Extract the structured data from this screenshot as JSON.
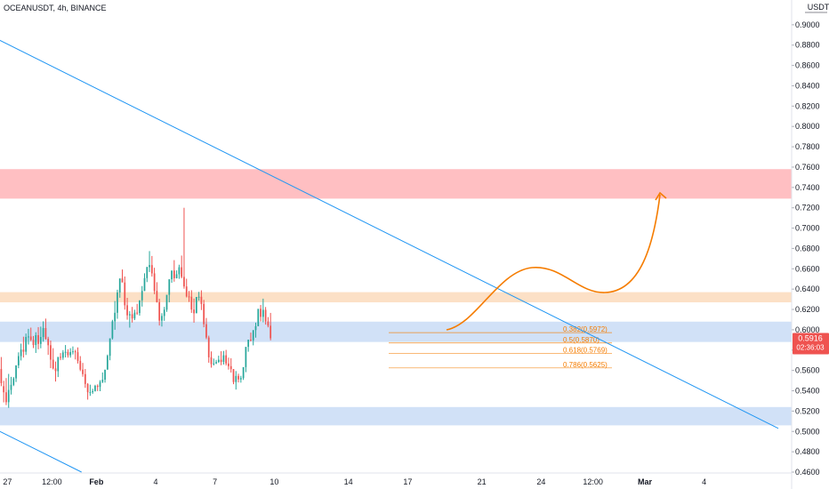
{
  "header": {
    "title": "OCEANUSDT, 4h, BINANCE",
    "currency": "USDT"
  },
  "colors": {
    "bullish": "#26a69a",
    "bearish": "#ef5350",
    "trendline": "#2196f3",
    "fib": "#f57c00",
    "zone_red": "#ffbfc2",
    "zone_orange": "#fce0c6",
    "zone_blue": "#d1e1f7",
    "price_badge": "#ef5350",
    "projection": "#f57c00"
  },
  "chart_data": {
    "type": "candlestick",
    "symbol": "OCEANUSDT",
    "interval": "4h",
    "exchange": "BINANCE",
    "ylim": [
      0.46,
      0.92
    ],
    "y_ticks": [
      "0.9000",
      "0.8800",
      "0.8600",
      "0.8400",
      "0.8200",
      "0.8000",
      "0.7800",
      "0.7600",
      "0.7400",
      "0.7200",
      "0.7000",
      "0.6800",
      "0.6600",
      "0.6400",
      "0.6200",
      "0.6000",
      "0.5800",
      "0.5600",
      "0.5400",
      "0.5200",
      "0.5000",
      "0.4800",
      "0.4600"
    ],
    "x_ticks": [
      {
        "label": "27",
        "x": 0.5
      },
      {
        "label": "12:00",
        "x": 3.5
      },
      {
        "label": "Feb",
        "x": 6.5
      },
      {
        "label": "4",
        "x": 10.5
      },
      {
        "label": "7",
        "x": 14.5
      },
      {
        "label": "10",
        "x": 18.5
      },
      {
        "label": "14",
        "x": 23.5
      },
      {
        "label": "17",
        "x": 27.5
      },
      {
        "label": "21",
        "x": 32.5
      },
      {
        "label": "24",
        "x": 36.5
      },
      {
        "label": "12:00",
        "x": 40
      },
      {
        "label": "Mar",
        "x": 43.5
      },
      {
        "label": "4",
        "x": 47.5
      }
    ],
    "x_range": [
      0,
      53.4
    ],
    "candles": [
      [
        0.5846,
        0.6012,
        0.5779,
        0.5767
      ],
      [
        0.5767,
        0.5932,
        0.5617,
        0.5614
      ],
      [
        0.5614,
        0.5732,
        0.5475,
        0.5445
      ],
      [
        0.5445,
        0.5498,
        0.5385,
        0.5286
      ],
      [
        0.5385,
        0.5525,
        0.5288,
        0.5259
      ],
      [
        0.5288,
        0.5566,
        0.5408,
        0.5232
      ],
      [
        0.5408,
        0.5537,
        0.5458,
        0.5363
      ],
      [
        0.5458,
        0.5535,
        0.5522,
        0.5446
      ],
      [
        0.5522,
        0.565,
        0.565,
        0.5486
      ],
      [
        0.565,
        0.5778,
        0.5741,
        0.5622
      ],
      [
        0.5741,
        0.5864,
        0.5805,
        0.5698
      ],
      [
        0.5805,
        0.5932,
        0.5784,
        0.5727
      ],
      [
        0.5784,
        0.5963,
        0.5929,
        0.5752
      ],
      [
        0.5929,
        0.6009,
        0.5934,
        0.5855
      ],
      [
        0.5934,
        0.6021,
        0.59,
        0.5888
      ],
      [
        0.59,
        0.5939,
        0.585,
        0.582
      ],
      [
        0.585,
        0.5976,
        0.5947,
        0.5772
      ],
      [
        0.5947,
        0.6026,
        0.5861,
        0.5808
      ],
      [
        0.5861,
        0.6031,
        0.5929,
        0.5818
      ],
      [
        0.5929,
        0.6083,
        0.6017,
        0.5883
      ],
      [
        0.6017,
        0.611,
        0.5911,
        0.5903
      ],
      [
        0.5911,
        0.5931,
        0.5848,
        0.5753
      ],
      [
        0.5848,
        0.5894,
        0.5706,
        0.5623
      ],
      [
        0.5706,
        0.5819,
        0.562,
        0.561
      ],
      [
        0.562,
        0.5688,
        0.5593,
        0.5491
      ],
      [
        0.5593,
        0.573,
        0.5733,
        0.5535
      ],
      [
        0.5733,
        0.5771,
        0.5725,
        0.5701
      ],
      [
        0.5725,
        0.58,
        0.5777,
        0.5704
      ],
      [
        0.5777,
        0.585,
        0.5783,
        0.5728
      ],
      [
        0.5783,
        0.5808,
        0.5749,
        0.5726
      ],
      [
        0.5749,
        0.5819,
        0.578,
        0.5726
      ],
      [
        0.578,
        0.5836,
        0.5788,
        0.5757
      ],
      [
        0.5788,
        0.5803,
        0.5779,
        0.5708
      ],
      [
        0.5779,
        0.5827,
        0.5694,
        0.5668
      ],
      [
        0.5694,
        0.5741,
        0.5608,
        0.5593
      ],
      [
        0.5608,
        0.5674,
        0.5564,
        0.5538
      ],
      [
        0.5564,
        0.5614,
        0.5467,
        0.5429
      ],
      [
        0.5467,
        0.5476,
        0.5385,
        0.5313
      ],
      [
        0.5385,
        0.546,
        0.5386,
        0.535
      ],
      [
        0.5386,
        0.542,
        0.5397,
        0.537
      ],
      [
        0.5397,
        0.5459,
        0.5449,
        0.5392
      ],
      [
        0.5449,
        0.5463,
        0.5438,
        0.5397
      ],
      [
        0.5438,
        0.5504,
        0.5486,
        0.5396
      ],
      [
        0.5486,
        0.558,
        0.5509,
        0.5476
      ],
      [
        0.5509,
        0.558,
        0.5608,
        0.548
      ],
      [
        0.5608,
        0.5756,
        0.5744,
        0.5608
      ],
      [
        0.5744,
        0.5866,
        0.5916,
        0.57
      ],
      [
        0.5916,
        0.6098,
        0.6083,
        0.5904
      ],
      [
        0.6083,
        0.6283,
        0.6167,
        0.6
      ],
      [
        0.6167,
        0.6394,
        0.6367,
        0.6108
      ],
      [
        0.6367,
        0.6488,
        0.6505,
        0.6315
      ],
      [
        0.6505,
        0.6593,
        0.6465,
        0.6469
      ],
      [
        0.6465,
        0.6524,
        0.6241,
        0.6198
      ],
      [
        0.6241,
        0.6314,
        0.6142,
        0.6099
      ],
      [
        0.6142,
        0.6183,
        0.6153,
        0.6021
      ],
      [
        0.6153,
        0.6225,
        0.6111,
        0.6071
      ],
      [
        0.6111,
        0.6197,
        0.6169,
        0.6095
      ],
      [
        0.6169,
        0.6255,
        0.6164,
        0.6146
      ],
      [
        0.6164,
        0.6274,
        0.629,
        0.6139
      ],
      [
        0.629,
        0.643,
        0.6382,
        0.6228
      ],
      [
        0.6382,
        0.6556,
        0.6508,
        0.6381
      ],
      [
        0.6508,
        0.662,
        0.6616,
        0.6469
      ],
      [
        0.6616,
        0.6774,
        0.6636,
        0.6568
      ],
      [
        0.6636,
        0.6726,
        0.6555,
        0.6523
      ],
      [
        0.6555,
        0.661,
        0.6382,
        0.635
      ],
      [
        0.6382,
        0.6468,
        0.6271,
        0.6268
      ],
      [
        0.6271,
        0.6305,
        0.609,
        0.6042
      ],
      [
        0.609,
        0.6163,
        0.6136,
        0.6032
      ],
      [
        0.6136,
        0.6225,
        0.6198,
        0.6088
      ],
      [
        0.6198,
        0.6339,
        0.6344,
        0.6176
      ],
      [
        0.6344,
        0.6491,
        0.6497,
        0.627
      ],
      [
        0.6497,
        0.6533,
        0.6583,
        0.6462
      ],
      [
        0.6583,
        0.6685,
        0.6507,
        0.6473
      ],
      [
        0.6507,
        0.6584,
        0.6546,
        0.6505
      ],
      [
        0.6546,
        0.664,
        0.6615,
        0.6501
      ],
      [
        0.6615,
        0.673,
        0.652,
        0.6506
      ],
      [
        0.652,
        0.72,
        0.6426,
        0.6404
      ],
      [
        0.6426,
        0.6502,
        0.6328,
        0.6318
      ],
      [
        0.6328,
        0.6382,
        0.6325,
        0.6274
      ],
      [
        0.6325,
        0.6389,
        0.6199,
        0.6166
      ],
      [
        0.6199,
        0.6307,
        0.6162,
        0.607
      ],
      [
        0.6162,
        0.6257,
        0.6323,
        0.617
      ],
      [
        0.6323,
        0.6373,
        0.6325,
        0.6286
      ],
      [
        0.6325,
        0.6388,
        0.6254,
        0.6194
      ],
      [
        0.6254,
        0.6294,
        0.6055,
        0.6025
      ],
      [
        0.6055,
        0.6116,
        0.5924,
        0.5908
      ],
      [
        0.5924,
        0.5942,
        0.5729,
        0.5676
      ],
      [
        0.5729,
        0.5787,
        0.5662,
        0.5628
      ],
      [
        0.5662,
        0.5717,
        0.5669,
        0.5649
      ],
      [
        0.5669,
        0.5704,
        0.5683,
        0.5662
      ],
      [
        0.5683,
        0.5745,
        0.5705,
        0.5674
      ],
      [
        0.5705,
        0.5789,
        0.5684,
        0.5651
      ],
      [
        0.5684,
        0.5792,
        0.5749,
        0.5658
      ],
      [
        0.5749,
        0.5802,
        0.5668,
        0.5649
      ],
      [
        0.5668,
        0.5726,
        0.5642,
        0.5608
      ],
      [
        0.5642,
        0.572,
        0.5613,
        0.5579
      ],
      [
        0.5613,
        0.5614,
        0.5486,
        0.5465
      ],
      [
        0.5486,
        0.5594,
        0.5546,
        0.5412
      ],
      [
        0.5546,
        0.5568,
        0.5512,
        0.5482
      ],
      [
        0.5512,
        0.5547,
        0.5525,
        0.548
      ],
      [
        0.5525,
        0.559,
        0.5633,
        0.5507
      ],
      [
        0.5633,
        0.5712,
        0.5832,
        0.5583
      ],
      [
        0.5832,
        0.5896,
        0.5903,
        0.5784
      ],
      [
        0.5903,
        0.5972,
        0.5896,
        0.5885
      ],
      [
        0.5896,
        0.5974,
        0.5997,
        0.5847
      ],
      [
        0.5997,
        0.607,
        0.6035,
        0.5923
      ],
      [
        0.6035,
        0.6137,
        0.6206,
        0.6038
      ],
      [
        0.6206,
        0.6244,
        0.6127,
        0.6082
      ],
      [
        0.6127,
        0.6306,
        0.6196,
        0.6074
      ],
      [
        0.6196,
        0.6224,
        0.6082,
        0.6051
      ],
      [
        0.6082,
        0.6125,
        0.604,
        0.6024
      ],
      [
        0.604,
        0.6166,
        0.5916,
        0.5896
      ]
    ],
    "zones": [
      {
        "name": "resistance-zone-red",
        "low": 0.729,
        "high": 0.758
      },
      {
        "name": "resistance-zone-orange",
        "low": 0.627,
        "high": 0.637
      },
      {
        "name": "support-zone-blue-upper",
        "low": 0.588,
        "high": 0.608
      },
      {
        "name": "support-zone-blue-lower",
        "low": 0.506,
        "high": 0.524
      }
    ],
    "trendlines": [
      {
        "name": "descending-trendline",
        "x1": -0.05,
        "y1": 0.885,
        "x2": 52.5,
        "y2": 0.503
      },
      {
        "name": "lower-trendline",
        "x1": 0,
        "y1": 0.5,
        "x2": 5.5,
        "y2": 0.46
      }
    ],
    "fib_levels": [
      {
        "label": "0.382(0.5972)",
        "value": 0.5972
      },
      {
        "label": "0.5(0.5870)",
        "value": 0.587
      },
      {
        "label": "0.618(0.5769)",
        "value": 0.5769
      },
      {
        "label": "0.786(0.5625)",
        "value": 0.5625
      }
    ],
    "current_price": "0.5916",
    "countdown": "02:36:03"
  }
}
